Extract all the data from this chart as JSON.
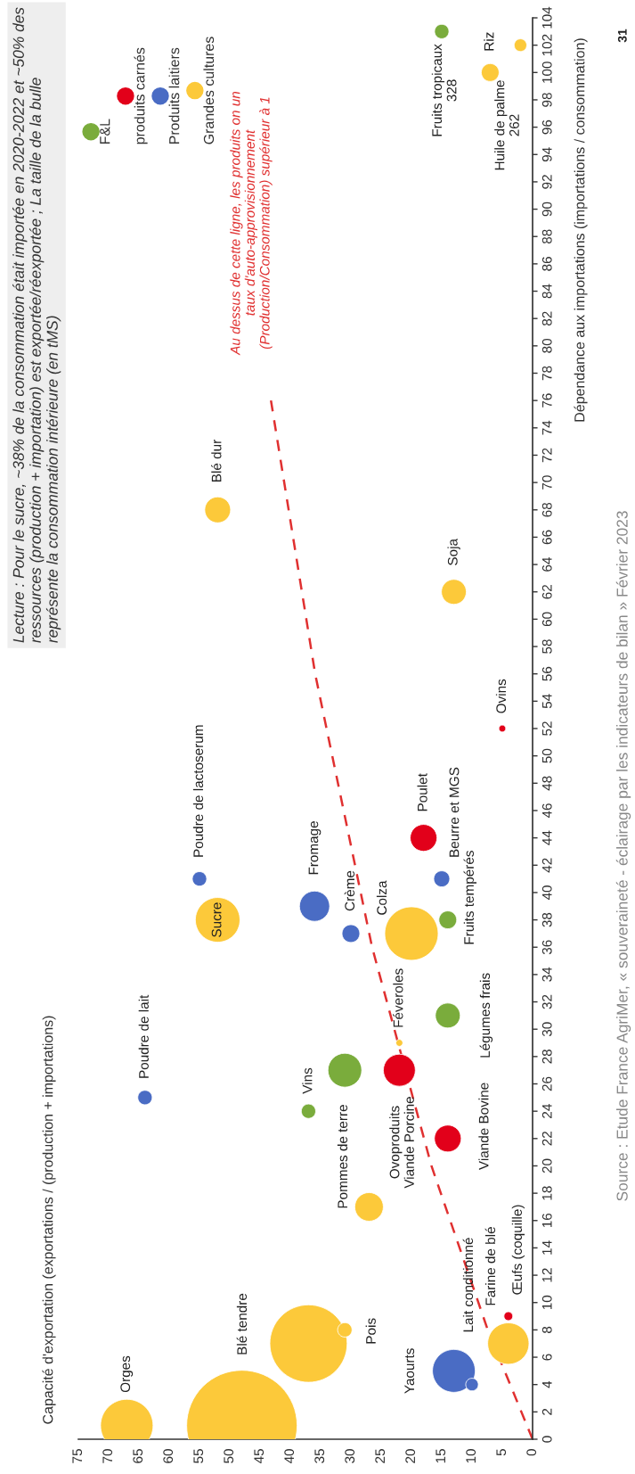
{
  "chart_data": {
    "type": "bubble",
    "ylabel": "Dépendance aux importations (importations / consommation)",
    "xlim": [
      75,
      0
    ],
    "xticks": [
      0,
      5,
      10,
      15,
      20,
      25,
      30,
      35,
      40,
      45,
      50,
      55,
      60,
      65,
      70,
      75
    ],
    "ylim": [
      0,
      104
    ],
    "yticks": [
      0,
      2,
      4,
      6,
      8,
      10,
      12,
      14,
      16,
      18,
      20,
      22,
      24,
      26,
      28,
      30,
      32,
      34,
      36,
      38,
      40,
      42,
      44,
      46,
      48,
      50,
      52,
      54,
      56,
      58,
      60,
      62,
      64,
      66,
      68,
      70,
      72,
      74,
      76,
      78,
      80,
      82,
      84,
      86,
      88,
      90,
      92,
      94,
      96,
      98,
      100,
      102,
      104
    ],
    "legend": "top left",
    "marker": "circle",
    "series": [
      {
        "name": "F&L",
        "color": "#7aac3c",
        "x": [
          37,
          31,
          14,
          14,
          15
        ],
        "values": [
          24,
          27,
          31,
          38,
          103
        ],
        "sizes": [
          0.017,
          0.094,
          0.051,
          0.026,
          0.017
        ]
      },
      {
        "name": "produits carnés",
        "color": "#e2001a",
        "x": [
          4,
          22,
          14,
          18,
          5
        ],
        "values": [
          9,
          27,
          22,
          44,
          52
        ],
        "sizes": [
          0.0065,
          0.084,
          0.059,
          0.059,
          0.004
        ]
      },
      {
        "name": "Produits laitiers",
        "color": "#4a6cc4",
        "x": [
          13,
          10,
          64,
          30,
          36,
          55,
          15
        ],
        "values": [
          5,
          4,
          25,
          37,
          39,
          41,
          41
        ],
        "sizes": [
          0.15,
          0.013,
          0.017,
          0.026,
          0.075,
          0.017,
          0.021
        ]
      },
      {
        "name": "Grandes cultures",
        "color": "#fcc93a",
        "x": [
          67,
          48,
          37,
          31,
          4,
          27,
          22,
          20,
          52,
          13,
          52,
          7,
          2
        ],
        "values": [
          1,
          1,
          7,
          8,
          7,
          17,
          29,
          37,
          38,
          62,
          68,
          100,
          102
        ],
        "sizes": [
          0.226,
          1,
          0.49,
          0.017,
          0.14,
          0.067,
          0.004,
          0.234,
          0.163,
          0.051,
          0.055,
          0.026,
          0.013
        ]
      },
      {
        "type": "line",
        "color": "#e03030",
        "line_style": "dashed",
        "marker": "none",
        "x": [
          0,
          7.4,
          16.7,
          26.5,
          35.9,
          43.2
        ],
        "values": [
          0,
          8,
          20,
          36,
          56,
          76
        ]
      }
    ],
    "annotations": [
      "Lecture : Pour le sucre, ~38% de la consommation était importée en 2020-2022 et ~50% des\nressources (production + importation) est exportée/réexportée ; La taille de la bulle\nreprésente la consommation intérieure (en tMS)",
      "Au dessus de cette ligne, les produits on un\ntaux d'auto-approvisionnement\n(Production/Consommation) supérieur à 1",
      "Source : Etude France AgriMer, « souveraineté - éclairage par les indicateurs de bilan » Février 2023",
      "31",
      "Orges",
      "Blé tendre",
      {
        "text": "Pois",
        "x": 31,
        "y": 8
      },
      {
        "text": "Yaourts",
        "x": 13,
        "y": 5
      },
      "Lait conditionné",
      "Farine de blé",
      {
        "text": "Œufs (coquille)",
        "x": 4,
        "y": 9
      },
      {
        "text": "Poudre de lait",
        "x": 64,
        "y": 25
      },
      {
        "text": "Vins",
        "x": 37,
        "y": 24
      },
      "Pommes de terre",
      {
        "text": "Ovoproduits\nViande Porcine",
        "x": 22,
        "y": 27
      },
      {
        "text": "Féveroles",
        "x": 22,
        "y": 29
      },
      {
        "text": "Viande Bovine",
        "x": 14,
        "y": 22
      },
      {
        "text": "Légumes frais",
        "x": 14,
        "y": 31
      },
      {
        "text": "Fruits tempérés",
        "x": 14,
        "y": 38
      },
      {
        "text": "Beurre et MGS",
        "x": 15,
        "y": 41
      },
      {
        "text": "Poulet",
        "x": 18,
        "y": 44
      },
      "Colza",
      {
        "text": "Crème",
        "x": 30,
        "y": 37
      },
      {
        "text": "Fromage",
        "x": 36,
        "y": 39
      },
      {
        "text": "Poudre de lactoserum",
        "x": 55,
        "y": 41
      },
      {
        "text": "Sucre",
        "x": 52,
        "y": 38
      },
      {
        "text": "Ovins",
        "x": 5,
        "y": 52
      },
      {
        "text": "Soja",
        "x": 13,
        "y": 62
      },
      {
        "text": "Blé dur",
        "x": 52,
        "y": 68
      },
      {
        "text": "Fruits tropicaux\n328",
        "x": 15,
        "y": 103
      },
      {
        "text": "Huile de palme\n262",
        "x": 2,
        "y": 102
      },
      {
        "text": "Riz",
        "x": 7,
        "y": 100
      },
      "Capacité d'exportation (exportations / (production + importations)"
    ]
  }
}
